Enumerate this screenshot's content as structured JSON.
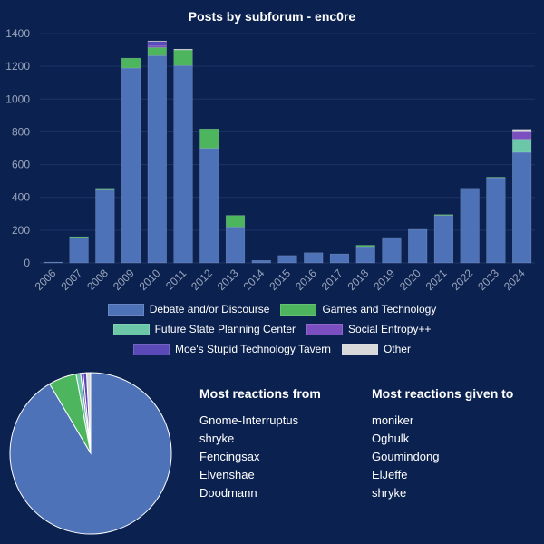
{
  "chart_data": [
    {
      "type": "bar",
      "stacked": true,
      "title": "Posts by subforum - enc0re",
      "categories": [
        "2006",
        "2007",
        "2008",
        "2009",
        "2010",
        "2011",
        "2012",
        "2013",
        "2014",
        "2015",
        "2016",
        "2017",
        "2018",
        "2019",
        "2020",
        "2021",
        "2022",
        "2023",
        "2024"
      ],
      "ylim": [
        0,
        1400
      ],
      "yticks": [
        0,
        200,
        400,
        600,
        800,
        1000,
        1200,
        1400
      ],
      "grid": true,
      "legend_position": "bottom",
      "series": [
        {
          "name": "Debate and/or Discourse",
          "color": "#4e72b8",
          "values": [
            5,
            155,
            445,
            1190,
            1265,
            1205,
            700,
            220,
            15,
            45,
            62,
            55,
            100,
            155,
            205,
            290,
            455,
            520,
            675
          ]
        },
        {
          "name": "Games and Technology",
          "color": "#4cb55e",
          "values": [
            0,
            5,
            10,
            60,
            50,
            95,
            118,
            70,
            0,
            0,
            0,
            0,
            8,
            0,
            0,
            5,
            0,
            3,
            0
          ]
        },
        {
          "name": "Future State Planning Center",
          "color": "#6cc7a8",
          "values": [
            0,
            0,
            0,
            0,
            0,
            0,
            0,
            0,
            0,
            0,
            0,
            0,
            0,
            0,
            0,
            0,
            0,
            0,
            80
          ]
        },
        {
          "name": "Social Entropy++",
          "color": "#7c4fc0",
          "values": [
            0,
            0,
            0,
            0,
            10,
            0,
            0,
            0,
            0,
            0,
            0,
            0,
            0,
            0,
            0,
            0,
            0,
            0,
            45
          ]
        },
        {
          "name": "Moe's Stupid Technology Tavern",
          "color": "#5a4ab8",
          "values": [
            0,
            0,
            0,
            0,
            27,
            0,
            0,
            0,
            0,
            0,
            0,
            0,
            0,
            0,
            0,
            0,
            0,
            0,
            0
          ]
        },
        {
          "name": "Other",
          "color": "#d9d9d9",
          "values": [
            0,
            0,
            0,
            0,
            3,
            5,
            0,
            0,
            0,
            0,
            0,
            0,
            0,
            0,
            0,
            0,
            0,
            0,
            15
          ]
        }
      ]
    },
    {
      "type": "pie",
      "slices": [
        {
          "color": "#4e72b8",
          "value": 91.5
        },
        {
          "color": "#4cb55e",
          "value": 5.6
        },
        {
          "color": "#6cc7a8",
          "value": 0.9
        },
        {
          "color": "#7c4fc0",
          "value": 0.5
        },
        {
          "color": "#5a4ab8",
          "value": 0.7
        },
        {
          "color": "#d9d9d9",
          "value": 0.8
        }
      ]
    }
  ],
  "reactions_from": {
    "heading": "Most reactions from",
    "names": [
      "Gnome-Interruptus",
      "shryke",
      "Fencingsax",
      "Elvenshae",
      "Doodmann"
    ]
  },
  "reactions_to": {
    "heading": "Most reactions given to",
    "names": [
      "moniker",
      "Oghulk",
      "Goumindong",
      "ElJeffe",
      "shryke"
    ]
  }
}
